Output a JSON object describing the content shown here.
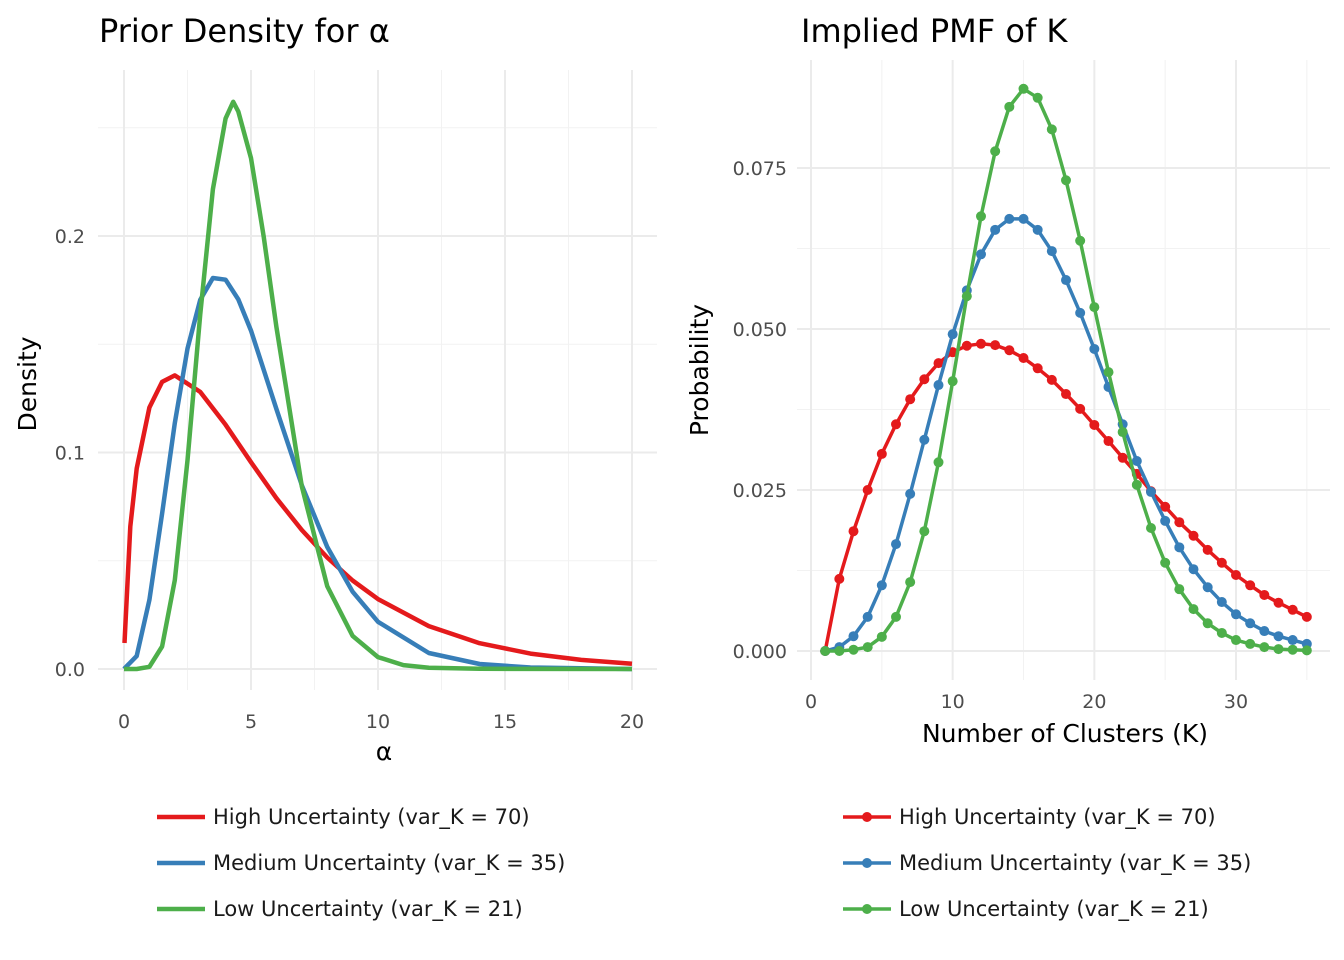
{
  "chart_data": [
    {
      "type": "line",
      "title": "Prior Density for α",
      "xlabel": "α",
      "ylabel": "Density",
      "xlim": [
        0,
        20
      ],
      "ylim": [
        0,
        0.27
      ],
      "xticks": [
        "0",
        "5",
        "10",
        "15",
        "20"
      ],
      "yticks": [
        "0.0",
        "0.1",
        "0.2"
      ],
      "grid": true,
      "legend_position": "bottom",
      "series": [
        {
          "name": "High Uncertainty (var_K = 70)",
          "color": "#e41a1c",
          "x": [
            0.02,
            0.25,
            0.5,
            1,
            1.5,
            2,
            3,
            4,
            5,
            6,
            7,
            8,
            9,
            10,
            12,
            14,
            16,
            18,
            20
          ],
          "y": [
            0.012,
            0.0658,
            0.0926,
            0.1208,
            0.1326,
            0.1356,
            0.128,
            0.1128,
            0.0955,
            0.0789,
            0.0642,
            0.0515,
            0.0409,
            0.0323,
            0.0198,
            0.0119,
            0.0071,
            0.0042,
            0.0024
          ]
        },
        {
          "name": "Medium Uncertainty (var_K = 35)",
          "color": "#377eb8",
          "x": [
            0,
            0.5,
            1,
            1.5,
            2,
            2.5,
            3,
            3.5,
            4,
            4.5,
            5,
            6,
            7,
            8,
            9,
            10,
            12,
            14,
            16,
            20
          ],
          "y": [
            0,
            0.006,
            0.0319,
            0.0718,
            0.1136,
            0.148,
            0.1705,
            0.1806,
            0.1798,
            0.1707,
            0.1563,
            0.1201,
            0.0849,
            0.0564,
            0.0357,
            0.0218,
            0.0074,
            0.0023,
            0.0007,
            0.0
          ]
        },
        {
          "name": "Low Uncertainty (var_K = 21)",
          "color": "#4daf4a",
          "x": [
            0,
            0.5,
            1,
            1.5,
            2,
            2.5,
            3,
            3.5,
            4,
            4.3,
            4.5,
            5,
            5.5,
            6,
            7,
            8,
            9,
            10,
            11,
            12,
            14,
            20
          ],
          "y": [
            0,
            0.0,
            0.001,
            0.0104,
            0.041,
            0.0964,
            0.1636,
            0.2216,
            0.2543,
            0.262,
            0.2575,
            0.236,
            0.1997,
            0.158,
            0.0844,
            0.0383,
            0.0153,
            0.0055,
            0.0018,
            0.0006,
            0.0001,
            0.0
          ]
        }
      ]
    },
    {
      "type": "line",
      "title": "Implied PMF of K",
      "xlabel": "Number of Clusters (K)",
      "ylabel": "Probability",
      "xlim": [
        0,
        35
      ],
      "ylim": [
        0,
        0.0873
      ],
      "xticks": [
        "0",
        "10",
        "20",
        "30"
      ],
      "yticks": [
        "0.000",
        "0.025",
        "0.050",
        "0.075"
      ],
      "grid": true,
      "markers": true,
      "legend_position": "bottom",
      "x": [
        1,
        2,
        3,
        4,
        5,
        6,
        7,
        8,
        9,
        10,
        11,
        12,
        13,
        14,
        15,
        16,
        17,
        18,
        19,
        20,
        21,
        22,
        23,
        24,
        25,
        26,
        27,
        28,
        29,
        30,
        31,
        32,
        33,
        34,
        35
      ],
      "series": [
        {
          "name": "High Uncertainty (var_K = 70)",
          "color": "#e41a1c",
          "values": [
            0,
            0.0112,
            0.0186,
            0.025,
            0.0306,
            0.0352,
            0.0391,
            0.0422,
            0.0447,
            0.0464,
            0.0474,
            0.0477,
            0.0475,
            0.0467,
            0.0455,
            0.0439,
            0.0421,
            0.0399,
            0.0376,
            0.0351,
            0.0326,
            0.03,
            0.0275,
            0.0248,
            0.0224,
            0.02,
            0.0179,
            0.0157,
            0.0137,
            0.0118,
            0.0102,
            0.0087,
            0.0075,
            0.0064,
            0.0053
          ]
        },
        {
          "name": "Medium Uncertainty (var_K = 35)",
          "color": "#377eb8",
          "values": [
            0,
            0.0006,
            0.0023,
            0.0053,
            0.0102,
            0.0166,
            0.0244,
            0.0328,
            0.0413,
            0.0492,
            0.056,
            0.0616,
            0.0654,
            0.0671,
            0.0671,
            0.0654,
            0.0621,
            0.0576,
            0.0525,
            0.0469,
            0.041,
            0.0352,
            0.0295,
            0.0247,
            0.0202,
            0.0161,
            0.0127,
            0.0099,
            0.0076,
            0.0057,
            0.0043,
            0.0031,
            0.0023,
            0.0017,
            0.0011
          ]
        },
        {
          "name": "Low Uncertainty (var_K = 21)",
          "color": "#4daf4a",
          "values": [
            0,
            0,
            0.0002,
            0.0006,
            0.0022,
            0.0053,
            0.0107,
            0.0186,
            0.0293,
            0.0419,
            0.0551,
            0.0675,
            0.0776,
            0.0845,
            0.0873,
            0.0859,
            0.081,
            0.0731,
            0.0637,
            0.0534,
            0.0433,
            0.034,
            0.0258,
            0.0191,
            0.0137,
            0.0096,
            0.0065,
            0.0043,
            0.0028,
            0.0017,
            0.0011,
            0.0006,
            0.0003,
            0.0002,
            0.0001
          ]
        }
      ]
    }
  ]
}
